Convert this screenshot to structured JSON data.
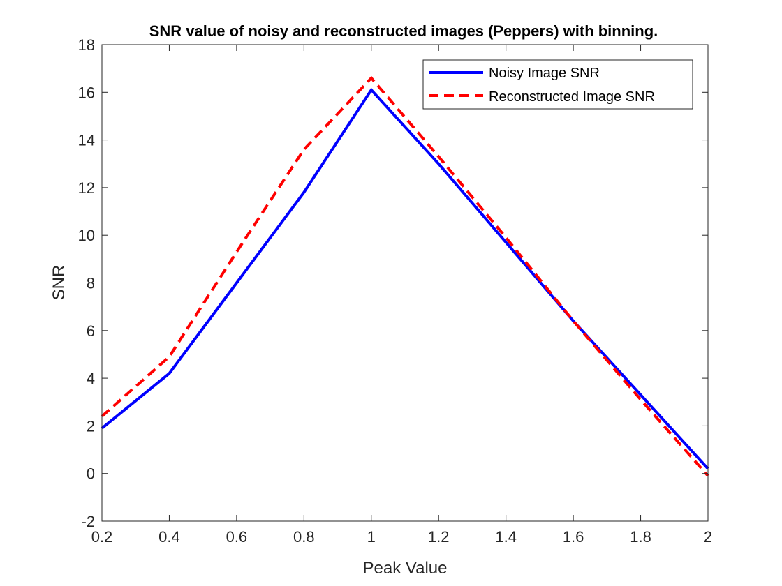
{
  "chart_data": {
    "type": "line",
    "title": "SNR value of noisy and reconstructed images (Peppers) with binning.",
    "xlabel": "Peak Value",
    "ylabel": "SNR",
    "xlim": [
      0.2,
      2
    ],
    "ylim": [
      -2,
      18
    ],
    "xticks": [
      "0.2",
      "0.4",
      "0.6",
      "0.8",
      "1",
      "1.2",
      "1.4",
      "1.6",
      "1.8",
      "2"
    ],
    "yticks": [
      "-2",
      "0",
      "2",
      "4",
      "6",
      "8",
      "10",
      "12",
      "14",
      "16",
      "18"
    ],
    "grid": false,
    "legend_position": "top-right",
    "series": [
      {
        "name": "Noisy Image SNR",
        "color": "#0000ff",
        "style": "solid",
        "x": [
          0.2,
          0.4,
          0.6,
          0.8,
          1.0,
          1.2,
          1.4,
          1.6,
          1.8,
          2.0
        ],
        "y": [
          1.9,
          4.2,
          8.0,
          11.8,
          16.1,
          13.0,
          9.7,
          6.4,
          3.3,
          0.2
        ]
      },
      {
        "name": "Reconstructed Image SNR",
        "color": "#ff0000",
        "style": "dashed",
        "x": [
          0.2,
          0.4,
          0.6,
          0.8,
          1.0,
          1.2,
          1.4,
          1.6,
          1.8,
          2.0
        ],
        "y": [
          2.4,
          4.9,
          9.3,
          13.6,
          16.6,
          13.3,
          9.9,
          6.4,
          3.1,
          -0.1
        ]
      }
    ]
  }
}
